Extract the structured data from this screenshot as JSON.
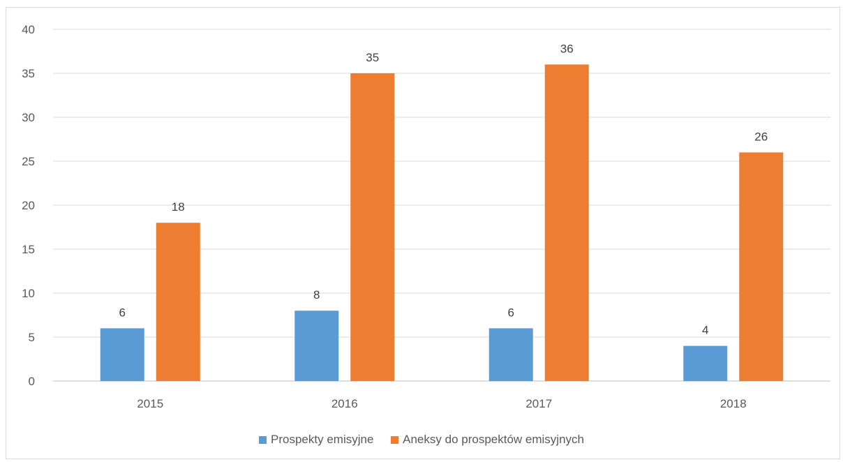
{
  "chart_data": {
    "type": "bar",
    "categories": [
      "2015",
      "2016",
      "2017",
      "2018"
    ],
    "series": [
      {
        "name": "Prospekty emisyjne",
        "values": [
          6,
          8,
          6,
          4
        ],
        "color": "#5B9BD5"
      },
      {
        "name": "Aneksy do prospektów emisyjnych",
        "values": [
          18,
          35,
          36,
          26
        ],
        "color": "#ED7D31"
      }
    ],
    "ylim": [
      0,
      40
    ],
    "yticks": [
      "0",
      "5",
      "10",
      "15",
      "20",
      "25",
      "30",
      "35",
      "40"
    ],
    "grid": true,
    "legend_position": "bottom",
    "data_labels": true
  }
}
